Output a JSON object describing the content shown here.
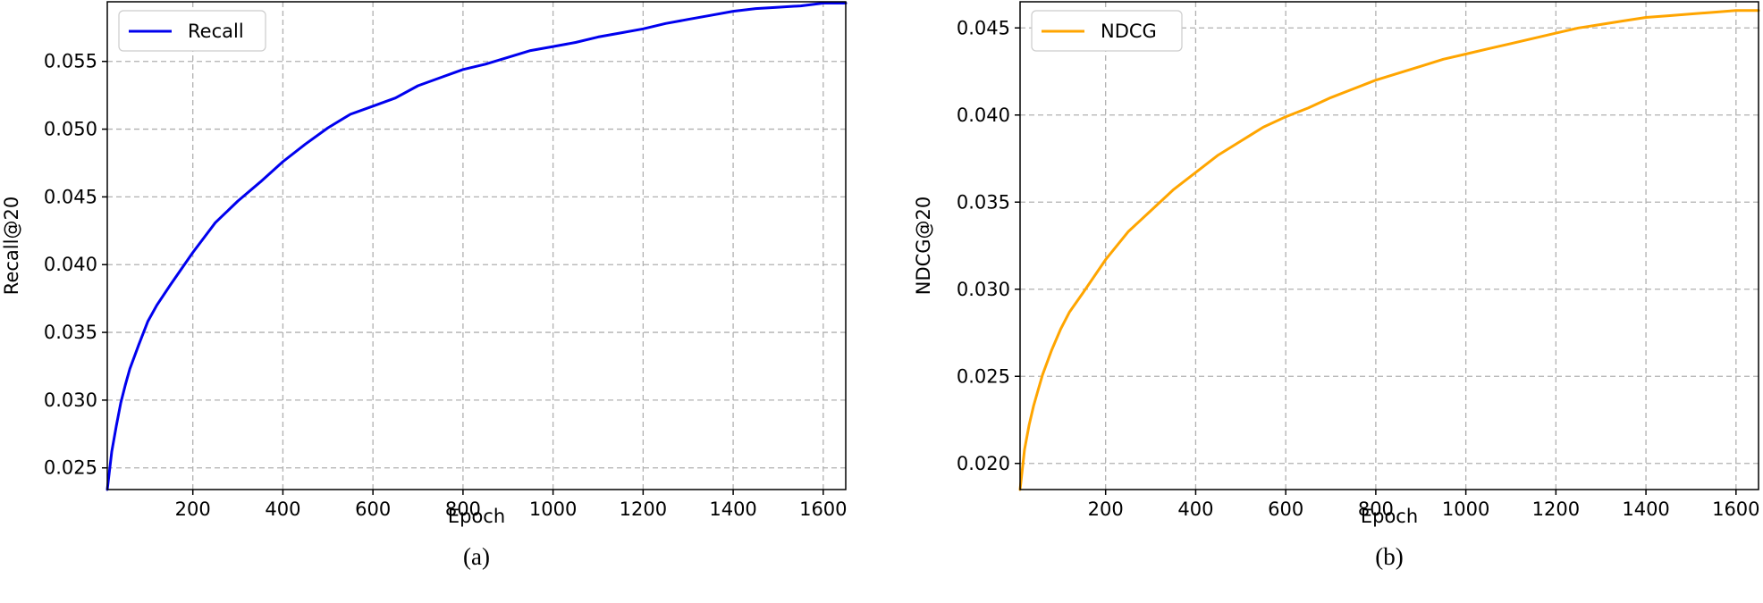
{
  "chart_data": [
    {
      "type": "line",
      "xlabel": "Epoch",
      "ylabel": "Recall@20",
      "caption": "(a)",
      "xlim": [
        10,
        1650
      ],
      "ylim": [
        0.0234,
        0.0594
      ],
      "xticks": [
        200,
        400,
        600,
        800,
        1000,
        1200,
        1400,
        1600
      ],
      "yticks": [
        0.025,
        0.03,
        0.035,
        0.04,
        0.045,
        0.05,
        0.055
      ],
      "ytick_labels": [
        "0.025",
        "0.030",
        "0.035",
        "0.040",
        "0.045",
        "0.050",
        "0.055"
      ],
      "grid": true,
      "legend_position": "upper-left",
      "series": [
        {
          "name": "Recall",
          "color": "#0000ee",
          "x": [
            10,
            20,
            30,
            40,
            50,
            60,
            80,
            100,
            120,
            150,
            200,
            250,
            300,
            350,
            400,
            450,
            500,
            550,
            600,
            650,
            700,
            750,
            800,
            850,
            900,
            950,
            1000,
            1050,
            1100,
            1150,
            1200,
            1250,
            1300,
            1350,
            1400,
            1450,
            1500,
            1550,
            1600,
            1650
          ],
          "y": [
            0.0234,
            0.0262,
            0.0281,
            0.0298,
            0.0311,
            0.0323,
            0.0341,
            0.0358,
            0.037,
            0.0385,
            0.0409,
            0.0431,
            0.0447,
            0.0461,
            0.0476,
            0.0489,
            0.0501,
            0.0511,
            0.0517,
            0.0523,
            0.0532,
            0.0538,
            0.0544,
            0.0548,
            0.0553,
            0.0558,
            0.0561,
            0.0564,
            0.0568,
            0.0571,
            0.0574,
            0.0578,
            0.0581,
            0.0584,
            0.0587,
            0.0589,
            0.059,
            0.0591,
            0.0593,
            0.0593
          ]
        }
      ]
    },
    {
      "type": "line",
      "xlabel": "Epoch",
      "ylabel": "NDCG@20",
      "caption": "(b)",
      "xlim": [
        10,
        1650
      ],
      "ylim": [
        0.0185,
        0.0465
      ],
      "xticks": [
        200,
        400,
        600,
        800,
        1000,
        1200,
        1400,
        1600
      ],
      "yticks": [
        0.02,
        0.025,
        0.03,
        0.035,
        0.04,
        0.045
      ],
      "ytick_labels": [
        "0.020",
        "0.025",
        "0.030",
        "0.035",
        "0.040",
        "0.045"
      ],
      "grid": true,
      "legend_position": "upper-left",
      "series": [
        {
          "name": "NDCG",
          "color": "#ffa500",
          "x": [
            10,
            20,
            30,
            40,
            50,
            60,
            80,
            100,
            120,
            150,
            200,
            250,
            300,
            350,
            400,
            450,
            500,
            550,
            600,
            650,
            700,
            750,
            800,
            850,
            900,
            950,
            1000,
            1050,
            1100,
            1150,
            1200,
            1250,
            1300,
            1350,
            1400,
            1450,
            1500,
            1550,
            1600,
            1650
          ],
          "y": [
            0.0185,
            0.0208,
            0.0222,
            0.0233,
            0.0242,
            0.0251,
            0.0265,
            0.0277,
            0.0287,
            0.0298,
            0.0317,
            0.0333,
            0.0345,
            0.0357,
            0.0367,
            0.0377,
            0.0385,
            0.0393,
            0.0399,
            0.0404,
            0.041,
            0.0415,
            0.042,
            0.0424,
            0.0428,
            0.0432,
            0.0435,
            0.0438,
            0.0441,
            0.0444,
            0.0447,
            0.045,
            0.0452,
            0.0454,
            0.0456,
            0.0457,
            0.0458,
            0.0459,
            0.046,
            0.046
          ]
        }
      ]
    }
  ]
}
